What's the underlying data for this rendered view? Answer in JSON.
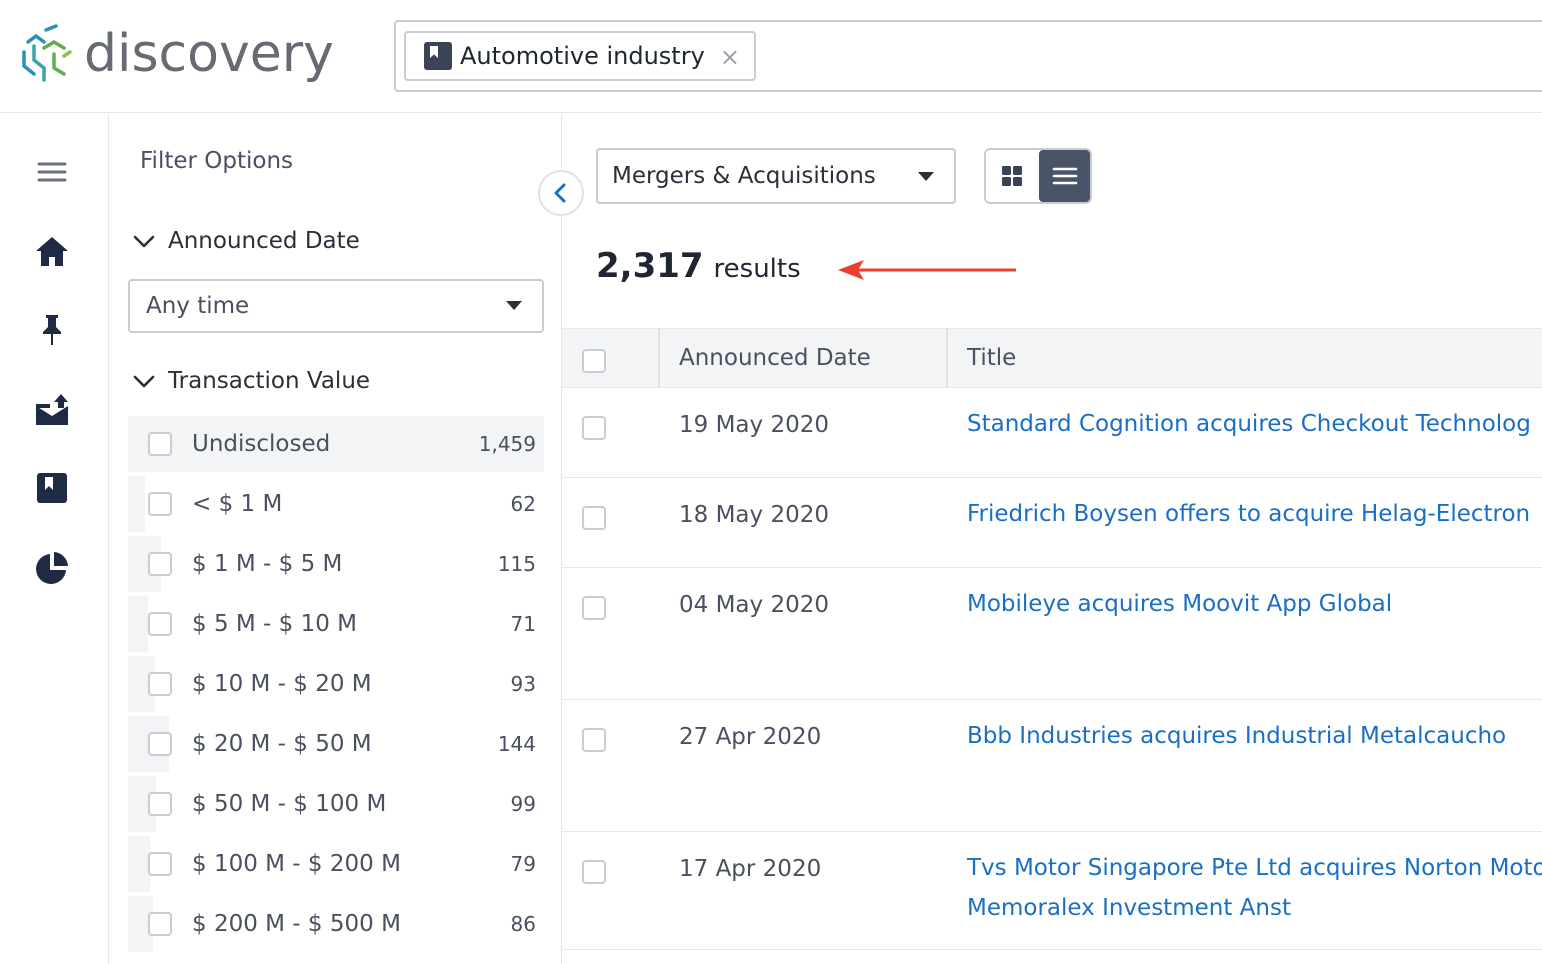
{
  "header": {
    "logo_text": "discovery",
    "search_chip": {
      "label": "Automotive industry",
      "close": "×"
    }
  },
  "leftnav": {
    "items": [
      "menu-icon",
      "home-icon",
      "pin-icon",
      "inbox-upload-icon",
      "bookmark-icon",
      "pie-chart-icon"
    ]
  },
  "filters": {
    "title": "Filter Options",
    "announced_date": {
      "heading": "Announced Date",
      "selected": "Any time"
    },
    "transaction_value": {
      "heading": "Transaction Value",
      "items": [
        {
          "label": "Undisclosed",
          "count": "1,459",
          "share": 1.0
        },
        {
          "label": "< $ 1 M",
          "count": "62",
          "share": 0.042
        },
        {
          "label": "$ 1 M - $ 5 M",
          "count": "115",
          "share": 0.079
        },
        {
          "label": "$ 5 M - $ 10 M",
          "count": "71",
          "share": 0.049
        },
        {
          "label": "$ 10 M - $ 20 M",
          "count": "93",
          "share": 0.064
        },
        {
          "label": "$ 20 M - $ 50 M",
          "count": "144",
          "share": 0.099
        },
        {
          "label": "$ 50 M - $ 100 M",
          "count": "99",
          "share": 0.068
        },
        {
          "label": "$ 100 M - $ 200 M",
          "count": "79",
          "share": 0.054
        },
        {
          "label": "$ 200 M - $ 500 M",
          "count": "86",
          "share": 0.059
        }
      ]
    }
  },
  "main": {
    "type_select": "Mergers & Acquisitions",
    "results_count": "2,317",
    "results_word": "results",
    "columns": {
      "date": "Announced Date",
      "title": "Title"
    },
    "rows": [
      {
        "date": "19 May 2020",
        "title": "Standard Cognition acquires Checkout Technolog"
      },
      {
        "date": "18 May 2020",
        "title": "Friedrich Boysen offers to acquire Helag-Electron"
      },
      {
        "date": "04 May 2020",
        "title": "Mobileye acquires Moovit App Global"
      },
      {
        "date": "27 Apr 2020",
        "title": "Bbb Industries acquires Industrial Metalcaucho"
      },
      {
        "date": "17 Apr 2020",
        "title": "Tvs Motor Singapore Pte Ltd acquires Norton Moto",
        "title2": "Memoralex Investment Anst"
      }
    ]
  },
  "colors": {
    "link": "#1a6fc4",
    "arrow": "#e8412c",
    "nav": "#1f2a44"
  }
}
